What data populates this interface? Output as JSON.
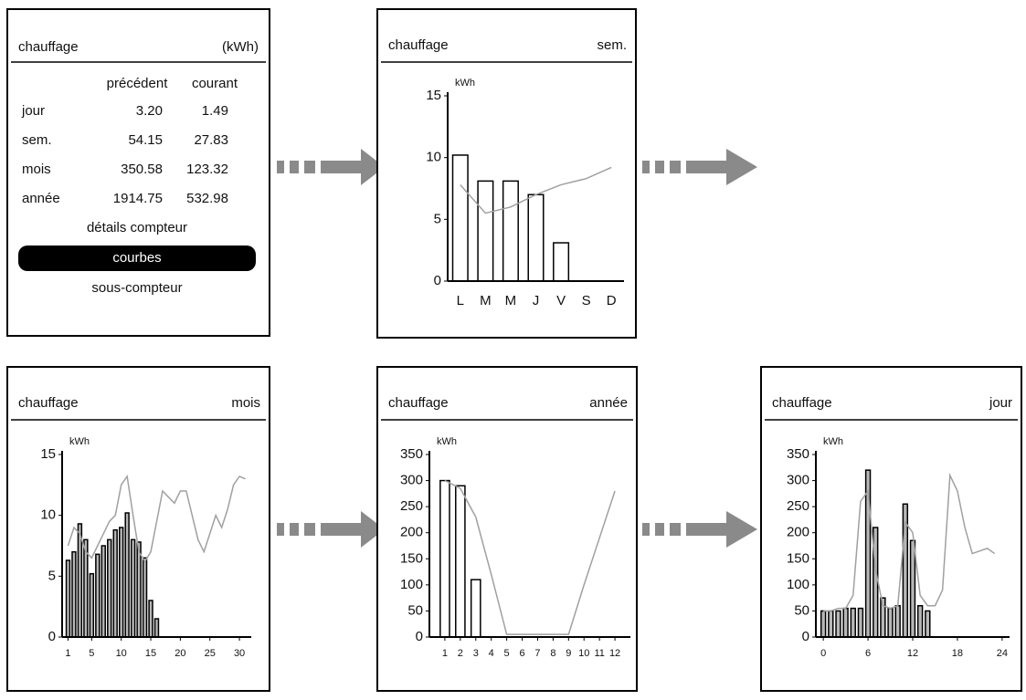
{
  "menu": {
    "title": "chauffage",
    "unit": "(kWh)",
    "headers": [
      "précédent",
      "courant"
    ],
    "rows": [
      [
        "jour",
        "3.20",
        "1.49"
      ],
      [
        "sem.",
        "54.15",
        "27.83"
      ],
      [
        "mois",
        "350.58",
        "123.32"
      ],
      [
        "année",
        "1914.75",
        "532.98"
      ]
    ],
    "items": [
      "détails compteur",
      "courbes",
      "sous-compteur"
    ],
    "selected": 1
  },
  "chart_data": [
    {
      "type": "bar",
      "title": "chauffage",
      "period": "sem.",
      "y_label": "kWh",
      "categories": [
        "L",
        "M",
        "M",
        "J",
        "V",
        "S",
        "D"
      ],
      "series": [
        {
          "type": "bar",
          "color": "#ffffff",
          "values": [
            10.2,
            8.1,
            8.1,
            7.0,
            3.1,
            null,
            null
          ]
        },
        {
          "type": "line",
          "color": "#a0a0a0",
          "values": [
            7.8,
            5.5,
            6.0,
            7.0,
            7.8,
            8.3,
            9.2
          ]
        }
      ],
      "ylim": [
        0,
        15
      ],
      "yticks": [
        0,
        5,
        10,
        15
      ]
    },
    {
      "type": "bar",
      "title": "chauffage",
      "period": "mois",
      "y_label": "kWh",
      "series": [
        {
          "type": "bar",
          "color": "#b8b8b8",
          "x": [
            1,
            2,
            3,
            4,
            5,
            6,
            7,
            8,
            9,
            10,
            11,
            12,
            13,
            14,
            15,
            16
          ],
          "values": [
            6.3,
            7.0,
            9.3,
            8.0,
            5.2,
            6.8,
            7.5,
            8.0,
            8.8,
            9.0,
            10.2,
            8.0,
            7.8,
            6.5,
            3.0,
            1.5
          ]
        },
        {
          "type": "line",
          "color": "#a0a0a0",
          "x": [
            1,
            2,
            3,
            4,
            5,
            6,
            7,
            8,
            9,
            10,
            11,
            12,
            13,
            14,
            15,
            16,
            17,
            18,
            19,
            20,
            21,
            22,
            23,
            24,
            25,
            26,
            27,
            28,
            29,
            30,
            31
          ],
          "values": [
            7.5,
            9.0,
            8.5,
            7.0,
            6.5,
            7.5,
            8.5,
            9.5,
            10.0,
            12.5,
            13.2,
            10.0,
            7.0,
            6.2,
            7.0,
            9.5,
            12.0,
            11.5,
            11.0,
            12.0,
            12.0,
            10.0,
            8.0,
            7.0,
            8.5,
            10.0,
            9.0,
            10.5,
            12.5,
            13.2,
            13.0
          ]
        }
      ],
      "xlim": [
        0,
        32
      ],
      "xticks": [
        1,
        5,
        10,
        15,
        20,
        25,
        30
      ],
      "ylim": [
        0,
        15
      ],
      "yticks": [
        0,
        5,
        10,
        15
      ]
    },
    {
      "type": "bar",
      "title": "chauffage",
      "period": "année",
      "y_label": "kWh",
      "series": [
        {
          "type": "bar",
          "color": "#ffffff",
          "x": [
            1,
            2,
            3
          ],
          "values": [
            300,
            290,
            110
          ]
        },
        {
          "type": "line",
          "color": "#a0a0a0",
          "x": [
            1,
            2,
            3,
            4,
            5,
            6,
            7,
            8,
            9,
            10,
            11,
            12
          ],
          "values": [
            300,
            285,
            230,
            120,
            5,
            5,
            5,
            5,
            5,
            100,
            190,
            280
          ]
        }
      ],
      "xlim": [
        0,
        13
      ],
      "xticks": [
        1,
        2,
        3,
        4,
        5,
        6,
        7,
        8,
        9,
        10,
        11,
        12
      ],
      "ylim": [
        0,
        350
      ],
      "yticks": [
        0,
        50,
        100,
        150,
        200,
        250,
        300,
        350
      ]
    },
    {
      "type": "bar",
      "title": "chauffage",
      "period": "jour",
      "y_label": "kWh",
      "series": [
        {
          "type": "bar",
          "color": "#b8b8b8",
          "x": [
            0,
            1,
            2,
            3,
            4,
            5,
            6,
            7,
            8,
            9,
            10,
            11,
            12,
            13,
            14
          ],
          "values": [
            50,
            50,
            50,
            55,
            55,
            55,
            320,
            210,
            75,
            55,
            60,
            255,
            185,
            60,
            50
          ]
        },
        {
          "type": "line",
          "color": "#a0a0a0",
          "x": [
            0,
            1,
            2,
            3,
            4,
            5,
            6,
            7,
            8,
            9,
            10,
            11,
            12,
            13,
            14,
            15,
            16,
            17,
            18,
            19,
            20,
            21,
            22,
            23
          ],
          "values": [
            50,
            50,
            55,
            55,
            80,
            260,
            280,
            130,
            60,
            55,
            60,
            220,
            200,
            80,
            60,
            60,
            90,
            310,
            280,
            210,
            160,
            165,
            170,
            160
          ]
        }
      ],
      "xlim": [
        -1,
        25
      ],
      "xticks": [
        0,
        6,
        12,
        18,
        24
      ],
      "ylim": [
        0,
        350
      ],
      "yticks": [
        0,
        50,
        100,
        150,
        200,
        250,
        300,
        350
      ]
    }
  ]
}
